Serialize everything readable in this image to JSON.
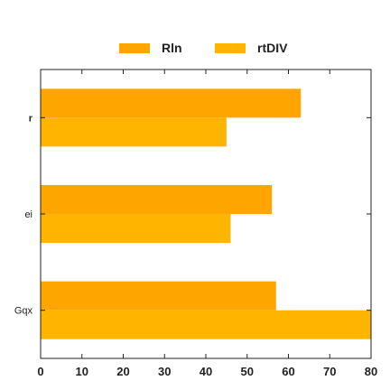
{
  "chart_data": {
    "type": "bar",
    "orientation": "horizontal",
    "categories": [
      "r",
      "ei",
      "Gqx"
    ],
    "series": [
      {
        "name": "Rln",
        "values": [
          63,
          56,
          57
        ],
        "color": "#FFA500"
      },
      {
        "name": "rtDIV",
        "values": [
          45,
          46,
          80
        ],
        "color": "#FFB400"
      }
    ],
    "xlim": [
      0,
      80
    ],
    "xticks": [
      0,
      10,
      20,
      30,
      40,
      50,
      60,
      70,
      80
    ],
    "legend_position": "top-center",
    "grid": false
  }
}
